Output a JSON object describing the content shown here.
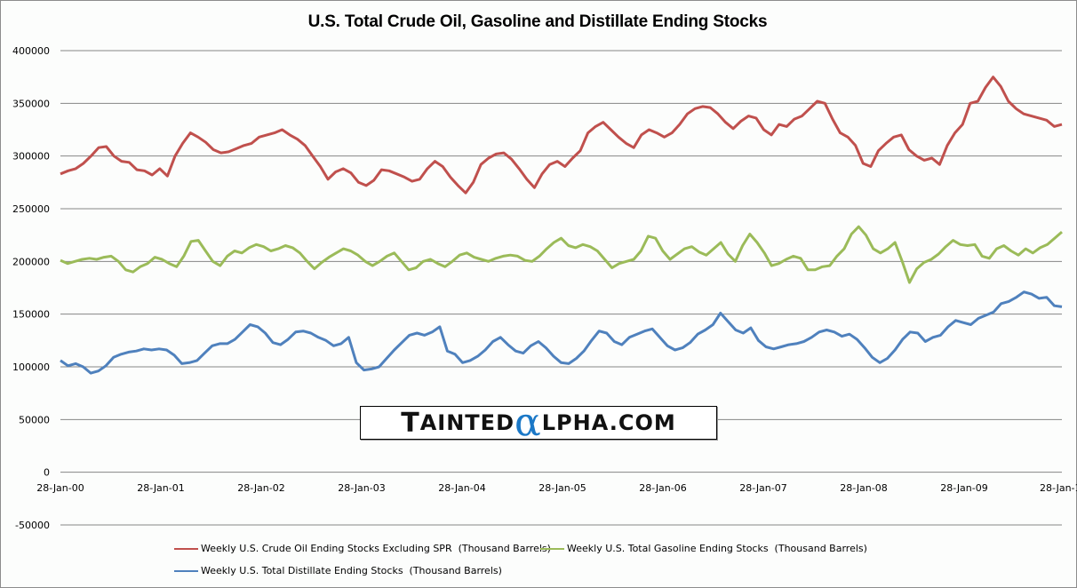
{
  "chart_data": {
    "type": "line",
    "title": "U.S. Total Crude Oil, Gasoline and Distillate Ending Stocks",
    "xlabel": "",
    "ylabel": "",
    "ylim": [
      -50000,
      400000
    ],
    "yticks": [
      "400000",
      "350000",
      "300000",
      "250000",
      "200000",
      "150000",
      "100000",
      "50000",
      "0",
      "-50000"
    ],
    "ytick_values": [
      400000,
      350000,
      300000,
      250000,
      200000,
      150000,
      100000,
      50000,
      0,
      -50000
    ],
    "xticks": [
      "28-Jan-00",
      "28-Jan-01",
      "28-Jan-02",
      "28-Jan-03",
      "28-Jan-04",
      "28-Jan-05",
      "28-Jan-06",
      "28-Jan-07",
      "28-Jan-08",
      "28-Jan-09",
      "28-Jan-1"
    ],
    "xlim_years": [
      0,
      10.1
    ],
    "x_unit": "years since 28-Jan-00 (monthly samples)",
    "grid": true,
    "legend_position": "bottom",
    "series": [
      {
        "name": "Weekly U.S. Crude Oil Ending Stocks Excluding SPR  (Thousand Barrels)",
        "color": "#c0504d",
        "values": [
          283000,
          286000,
          288000,
          293000,
          300000,
          308000,
          309000,
          300000,
          295000,
          294000,
          287000,
          286000,
          282000,
          288000,
          281000,
          300000,
          312000,
          322000,
          318000,
          313000,
          306000,
          303000,
          304000,
          307000,
          310000,
          312000,
          318000,
          320000,
          322000,
          325000,
          320000,
          316000,
          310000,
          300000,
          290000,
          278000,
          285000,
          288000,
          284000,
          275000,
          272000,
          277000,
          287000,
          286000,
          283000,
          280000,
          276000,
          278000,
          288000,
          295000,
          290000,
          280000,
          272000,
          265000,
          275000,
          292000,
          298000,
          302000,
          303000,
          297000,
          288000,
          278000,
          270000,
          283000,
          292000,
          295000,
          290000,
          298000,
          305000,
          322000,
          328000,
          332000,
          325000,
          318000,
          312000,
          308000,
          320000,
          325000,
          322000,
          318000,
          322000,
          330000,
          340000,
          345000,
          347000,
          346000,
          340000,
          332000,
          326000,
          333000,
          338000,
          336000,
          325000,
          320000,
          330000,
          328000,
          335000,
          338000,
          345000,
          352000,
          350000,
          335000,
          322000,
          318000,
          310000,
          293000,
          290000,
          305000,
          312000,
          318000,
          320000,
          306000,
          300000,
          296000,
          298000,
          292000,
          310000,
          322000,
          330000,
          350000,
          352000,
          365000,
          375000,
          366000,
          352000,
          345000,
          340000,
          338000,
          336000,
          334000,
          328000,
          330000
        ]
      },
      {
        "name": "Weekly U.S. Total Gasoline Ending Stocks  (Thousand Barrels)",
        "color": "#9bbb59",
        "values": [
          201000,
          198000,
          200000,
          202000,
          203000,
          202000,
          204000,
          205000,
          200000,
          192000,
          190000,
          195000,
          198000,
          204000,
          202000,
          198000,
          195000,
          205000,
          219000,
          220000,
          210000,
          200000,
          196000,
          205000,
          210000,
          208000,
          213000,
          216000,
          214000,
          210000,
          212000,
          215000,
          213000,
          208000,
          200000,
          193000,
          199000,
          204000,
          208000,
          212000,
          210000,
          206000,
          200000,
          196000,
          200000,
          205000,
          208000,
          200000,
          192000,
          194000,
          200000,
          202000,
          198000,
          195000,
          200000,
          206000,
          208000,
          204000,
          202000,
          200000,
          203000,
          205000,
          206000,
          205000,
          201000,
          200000,
          205000,
          212000,
          218000,
          222000,
          215000,
          213000,
          216000,
          214000,
          210000,
          202000,
          194000,
          198000,
          200000,
          202000,
          210000,
          224000,
          222000,
          210000,
          202000,
          207000,
          212000,
          214000,
          209000,
          206000,
          212000,
          218000,
          207000,
          200000,
          215000,
          226000,
          218000,
          208000,
          196000,
          198000,
          202000,
          205000,
          203000,
          192000,
          192000,
          195000,
          196000,
          205000,
          212000,
          226000,
          233000,
          225000,
          212000,
          208000,
          212000,
          218000,
          200000,
          180000,
          193000,
          199000,
          202000,
          207000,
          214000,
          220000,
          216000,
          215000,
          216000,
          205000,
          203000,
          212000,
          215000,
          210000,
          206000,
          212000,
          208000,
          213000,
          216000,
          222000,
          228000
        ]
      },
      {
        "name": "Weekly U.S. Total Distillate Ending Stocks  (Thousand Barrels)",
        "color": "#4f81bd",
        "values": [
          106000,
          101000,
          103000,
          100000,
          94000,
          96000,
          101000,
          109000,
          112000,
          114000,
          115000,
          117000,
          116000,
          117000,
          116000,
          111000,
          103000,
          104000,
          106000,
          113000,
          120000,
          122000,
          122000,
          126000,
          133000,
          140000,
          138000,
          132000,
          123000,
          121000,
          126000,
          133000,
          134000,
          132000,
          128000,
          125000,
          120000,
          122000,
          128000,
          104000,
          97000,
          98000,
          100000,
          108000,
          116000,
          123000,
          130000,
          132000,
          130000,
          133000,
          138000,
          115000,
          112000,
          104000,
          106000,
          110000,
          116000,
          124000,
          128000,
          121000,
          115000,
          113000,
          120000,
          124000,
          118000,
          110000,
          104000,
          103000,
          108000,
          115000,
          125000,
          134000,
          132000,
          124000,
          121000,
          128000,
          131000,
          134000,
          136000,
          128000,
          120000,
          116000,
          118000,
          123000,
          131000,
          135000,
          140000,
          151000,
          143000,
          135000,
          132000,
          137000,
          125000,
          119000,
          117000,
          119000,
          121000,
          122000,
          124000,
          128000,
          133000,
          135000,
          133000,
          129000,
          131000,
          126000,
          118000,
          109000,
          104000,
          108000,
          116000,
          126000,
          133000,
          132000,
          124000,
          128000,
          130000,
          138000,
          144000,
          142000,
          140000,
          146000,
          149000,
          152000,
          160000,
          162000,
          166000,
          171000,
          169000,
          165000,
          166000,
          158000,
          157000
        ]
      }
    ]
  }
}
